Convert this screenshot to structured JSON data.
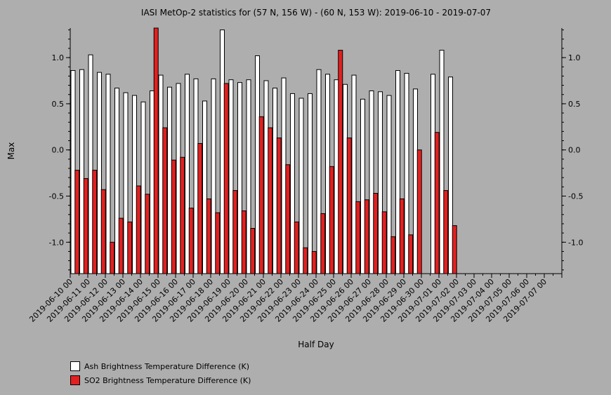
{
  "chart_data": {
    "type": "bar",
    "title": "IASI MetOp-2 statistics for (57 N, 156 W) - (60 N, 153 W): 2019-06-10 - 2019-07-07",
    "xlabel": "Half Day",
    "ylabel": "Max",
    "ylim": [
      -1.34,
      1.32
    ],
    "yticks": [
      1.0,
      0.5,
      0.0,
      -0.5,
      -1.0
    ],
    "ytick_labels": [
      "1.0",
      "0.5",
      "0.0",
      "-0.5",
      "-1.0"
    ],
    "xtick_labels": [
      "2019-06-10 00",
      "2019-06-11 00",
      "2019-06-12 00",
      "2019-06-13 00",
      "2019-06-14 00",
      "2019-06-15 00",
      "2019-06-16 00",
      "2019-06-17 00",
      "2019-06-18 00",
      "2019-06-19 00",
      "2019-06-20 00",
      "2019-06-21 00",
      "2019-06-22 00",
      "2019-06-23 00",
      "2019-06-24 00",
      "2019-06-25 00",
      "2019-06-26 00",
      "2019-06-27 00",
      "2019-06-28 00",
      "2019-06-29 00",
      "2019-06-30 00",
      "2019-07-01 00",
      "2019-07-02 00",
      "2019-07-03 00",
      "2019-07-04 00",
      "2019-07-05 00",
      "2019-07-06 00",
      "2019-07-07 00"
    ],
    "half_days": 56,
    "series": [
      {
        "name": "Ash Brightness Temperature Difference (K)",
        "color": "#ffffff",
        "values": [
          0.86,
          0.87,
          1.03,
          0.84,
          0.82,
          0.67,
          0.62,
          0.59,
          0.52,
          0.64,
          0.81,
          0.68,
          0.72,
          0.82,
          0.77,
          0.53,
          0.77,
          1.3,
          0.76,
          0.73,
          0.76,
          1.02,
          0.75,
          0.67,
          0.78,
          0.61,
          0.56,
          0.61,
          0.87,
          0.82,
          0.76,
          0.71,
          0.81,
          0.55,
          0.64,
          0.63,
          0.59,
          0.86,
          0.83,
          0.66,
          null,
          0.82,
          1.08,
          0.79,
          null,
          null,
          null,
          null,
          null,
          null,
          null,
          null,
          null,
          null,
          null,
          null
        ]
      },
      {
        "name": "SO2 Brightness Temperature Difference (K)",
        "color": "#e32020",
        "values": [
          -0.22,
          -0.31,
          -0.22,
          -0.43,
          -1.0,
          -0.74,
          -0.78,
          -0.39,
          -0.48,
          1.32,
          0.24,
          -0.11,
          -0.08,
          -0.63,
          0.07,
          -0.53,
          -0.68,
          0.72,
          -0.44,
          -0.66,
          -0.85,
          0.36,
          0.24,
          0.13,
          -0.16,
          -0.78,
          -1.06,
          -1.1,
          -0.69,
          -0.18,
          1.08,
          0.13,
          -0.56,
          -0.54,
          -0.47,
          -0.67,
          -0.94,
          -0.53,
          -0.92,
          0.0,
          null,
          0.19,
          -0.44,
          -0.82,
          null,
          null,
          null,
          null,
          null,
          null,
          null,
          null,
          null,
          null,
          null,
          null
        ]
      }
    ]
  }
}
